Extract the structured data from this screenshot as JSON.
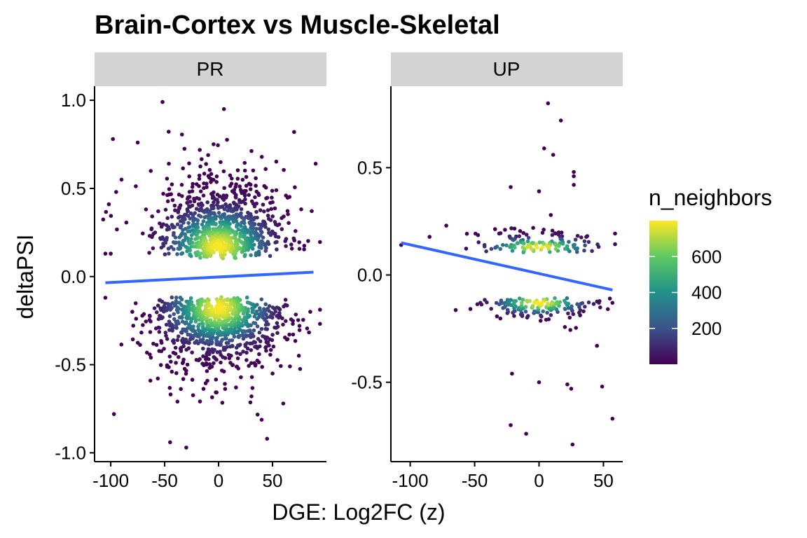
{
  "chart_data": {
    "type": "scatter",
    "title": "Brain-Cortex vs Muscle-Skeletal",
    "xlabel": "DGE: Log2FC (z)",
    "ylabel": "deltaPSI",
    "legend": {
      "title": "n_neighbors",
      "placement": "right",
      "type": "colorbar",
      "range": [
        0,
        800
      ],
      "ticks": [
        200,
        400,
        600
      ],
      "colors": [
        "#440154",
        "#3b528b",
        "#21918c",
        "#5ec962",
        "#fde725"
      ]
    },
    "trend_color": "#3366ff",
    "panels": [
      {
        "strip": "PR",
        "xlim": [
          -115,
          100
        ],
        "ylim": [
          -1.05,
          1.08
        ],
        "xticks": [
          -100,
          -50,
          0,
          50
        ],
        "xtick_labels": [
          "-100",
          "-50",
          "0",
          "50"
        ],
        "yticks": [
          -1.0,
          -0.5,
          0.0,
          0.5,
          1.0
        ],
        "ytick_labels": [
          "-1.0",
          "-0.5",
          "0.0",
          "0.5",
          "1.0"
        ],
        "trend": {
          "x": [
            -105,
            88
          ],
          "y": [
            -0.035,
            0.025
          ]
        },
        "clusters": [
          {
            "x_mean": 0,
            "x_sd": 30,
            "y_min": 0.1,
            "y_mode": 0.17,
            "y_max": 1.0,
            "n": 900
          },
          {
            "x_mean": 0,
            "x_sd": 30,
            "y_min": -0.1,
            "y_mode": -0.18,
            "y_max": -0.98,
            "n": 900
          }
        ],
        "points": [
          {
            "x": -98,
            "y": 0.78
          },
          {
            "x": -95,
            "y": 0.48
          },
          {
            "x": -90,
            "y": 0.55
          },
          {
            "x": -105,
            "y": 0.13
          },
          {
            "x": -100,
            "y": 0.13
          },
          {
            "x": -75,
            "y": 0.76
          },
          {
            "x": -52,
            "y": 0.99
          },
          {
            "x": 5,
            "y": 0.95
          },
          {
            "x": 70,
            "y": 0.82
          },
          {
            "x": 90,
            "y": 0.64
          },
          {
            "x": -97,
            "y": -0.78
          },
          {
            "x": -105,
            "y": -0.12
          },
          {
            "x": -45,
            "y": -0.94
          },
          {
            "x": -30,
            "y": -0.97
          },
          {
            "x": 45,
            "y": -0.92
          },
          {
            "x": 60,
            "y": -0.72
          },
          {
            "x": 75,
            "y": -0.28
          },
          {
            "x": -80,
            "y": -0.2
          },
          {
            "x": 85,
            "y": -0.2
          }
        ]
      },
      {
        "strip": "UP",
        "xlim": [
          -115,
          65
        ],
        "ylim": [
          -0.87,
          0.88
        ],
        "xticks": [
          -100,
          -50,
          0,
          50
        ],
        "xtick_labels": [
          "-100",
          "-50",
          "0",
          "50"
        ],
        "yticks": [
          -0.5,
          0.0,
          0.5
        ],
        "ytick_labels": [
          "-0.5",
          "0.0",
          "0.5"
        ],
        "trend": {
          "x": [
            -107,
            57
          ],
          "y": [
            0.15,
            -0.07
          ]
        },
        "clusters": [
          {
            "x_mean": 0,
            "x_sd": 25,
            "y_min": 0.1,
            "y_mode": 0.13,
            "y_max": 0.3,
            "n": 130
          },
          {
            "x_mean": 0,
            "x_sd": 22,
            "y_min": -0.1,
            "y_mode": -0.13,
            "y_max": -0.32,
            "n": 150
          }
        ],
        "points": [
          {
            "x": -107,
            "y": 0.14
          },
          {
            "x": -72,
            "y": 0.23
          },
          {
            "x": 7,
            "y": 0.8
          },
          {
            "x": 17,
            "y": 0.72
          },
          {
            "x": 4,
            "y": 0.59
          },
          {
            "x": 11,
            "y": 0.56
          },
          {
            "x": 27,
            "y": 0.48
          },
          {
            "x": 27,
            "y": 0.46
          },
          {
            "x": -22,
            "y": 0.41
          },
          {
            "x": 0,
            "y": 0.39
          },
          {
            "x": 27,
            "y": 0.42
          },
          {
            "x": -21,
            "y": -0.46
          },
          {
            "x": 0,
            "y": -0.5
          },
          {
            "x": 22,
            "y": -0.51
          },
          {
            "x": 25,
            "y": -0.53
          },
          {
            "x": -22,
            "y": -0.7
          },
          {
            "x": -10,
            "y": -0.74
          },
          {
            "x": 26,
            "y": -0.79
          },
          {
            "x": 57,
            "y": -0.67
          },
          {
            "x": 55,
            "y": -0.11
          },
          {
            "x": 57,
            "y": -0.13
          },
          {
            "x": 49,
            "y": -0.52
          },
          {
            "x": 45,
            "y": -0.33
          }
        ]
      }
    ]
  }
}
